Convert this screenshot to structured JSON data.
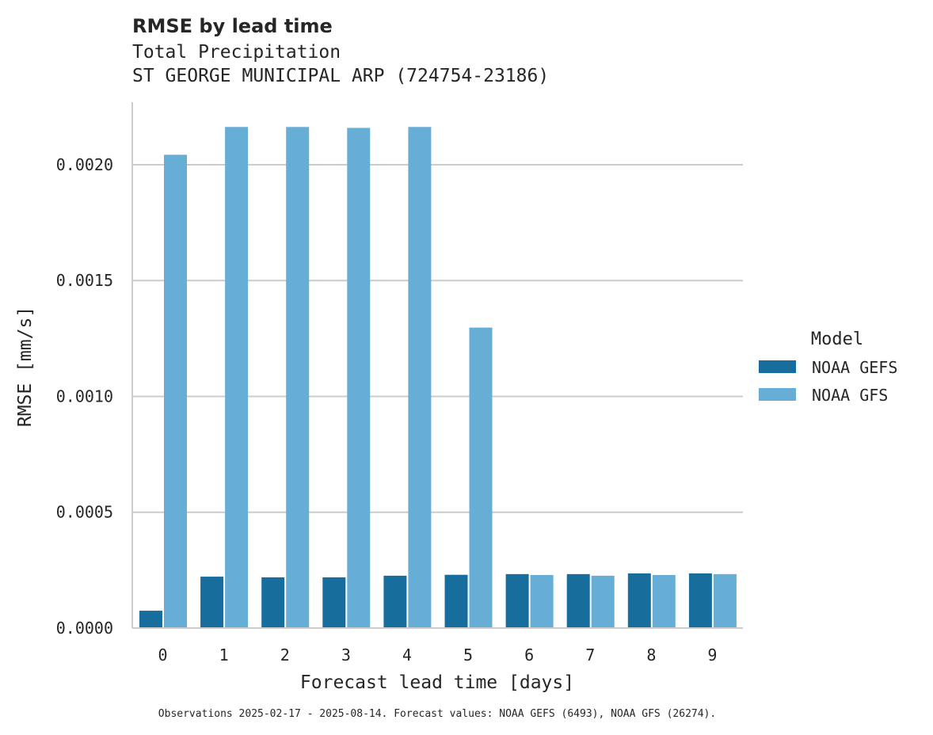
{
  "chart_data": {
    "type": "bar",
    "title": "RMSE by lead time",
    "subtitle_lines": [
      "Total Precipitation",
      "ST GEORGE MUNICIPAL ARP (724754-23186)"
    ],
    "xlabel": "Forecast lead time [days]",
    "ylabel": "RMSE [mm/s]",
    "categories": [
      "0",
      "1",
      "2",
      "3",
      "4",
      "5",
      "6",
      "7",
      "8",
      "9"
    ],
    "ylim": [
      0,
      0.00227
    ],
    "yticks": [
      0,
      0.0005,
      0.001,
      0.0015,
      0.002
    ],
    "ytick_labels": [
      "0.0000",
      "0.0005",
      "0.0010",
      "0.0015",
      "0.0020"
    ],
    "grid": "horizontal",
    "legend": {
      "title": "Model",
      "placement": "right"
    },
    "series": [
      {
        "name": "NOAA GEFS",
        "color": "#176d9c",
        "values": [
          7.5e-05,
          0.000222,
          0.000219,
          0.000219,
          0.000226,
          0.00023,
          0.000233,
          0.000233,
          0.000236,
          0.000236
        ]
      },
      {
        "name": "NOAA GFS",
        "color": "#67aed7",
        "values": [
          0.002043,
          0.002163,
          0.002163,
          0.002159,
          0.002163,
          0.001297,
          0.000229,
          0.000226,
          0.000229,
          0.000233
        ]
      }
    ],
    "footnote": "Observations 2025-02-17 - 2025-08-14. Forecast values: NOAA GEFS (6493), NOAA GFS (26274)."
  }
}
